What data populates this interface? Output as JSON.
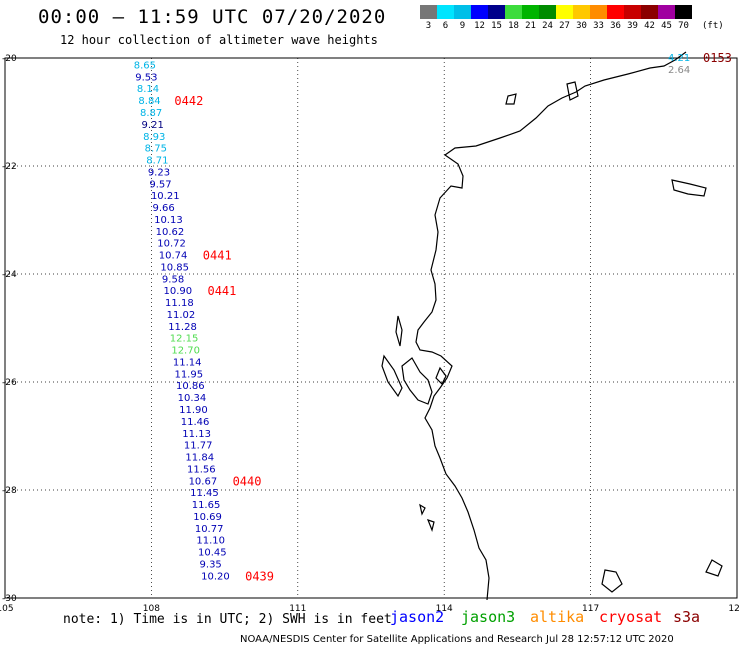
{
  "header": {
    "title": "00:00 – 11:59 UTC 07/20/2020",
    "subtitle": "12 hour collection of altimeter wave heights"
  },
  "legend_scale": {
    "unit": "(ft)",
    "labels": [
      "3",
      "6",
      "9",
      "12",
      "15",
      "18",
      "21",
      "24",
      "27",
      "30",
      "33",
      "36",
      "39",
      "42",
      "45",
      "70"
    ],
    "colors": [
      "#777777",
      "#00e5ff",
      "#00bfe8",
      "#0000ff",
      "#00008b",
      "#3cdc3c",
      "#00b400",
      "#008c00",
      "#ffff00",
      "#ffc800",
      "#ff8c00",
      "#ff0000",
      "#c80000",
      "#8b0000",
      "#a000a0",
      "#000000"
    ]
  },
  "map": {
    "lon_labels": [
      "105",
      "108",
      "111",
      "114",
      "117",
      "120"
    ],
    "lat_labels": [
      "-20",
      "-22",
      "-24",
      "-26",
      "-28",
      "-30"
    ],
    "coast_color": "#000000"
  },
  "track_points": [
    {
      "v": "8.65",
      "c": "#00b4e6",
      "lat": -20.12
    },
    {
      "v": "9.53",
      "c": "#0000b4",
      "lat": -20.34
    },
    {
      "v": "8.14",
      "c": "#00b4e6",
      "lat": -20.56
    },
    {
      "v": "8.84",
      "c": "#00b4e6",
      "lat": -20.78
    },
    {
      "v": "8.87",
      "c": "#00b4e6",
      "lat": -21.0
    },
    {
      "v": "9.21",
      "c": "#000080",
      "lat": -21.22
    },
    {
      "v": "8.93",
      "c": "#00b4e6",
      "lat": -21.44
    },
    {
      "v": "8.75",
      "c": "#00b4e6",
      "lat": -21.66
    },
    {
      "v": "8.71",
      "c": "#00b4e6",
      "lat": -21.88
    },
    {
      "v": "9.23",
      "c": "#0000b4",
      "lat": -22.1
    },
    {
      "v": "9.57",
      "c": "#0000b4",
      "lat": -22.32
    },
    {
      "v": "10.21",
      "c": "#0000b4",
      "lat": -22.54
    },
    {
      "v": "9.66",
      "c": "#0000b4",
      "lat": -22.76
    },
    {
      "v": "10.13",
      "c": "#0000b4",
      "lat": -22.98
    },
    {
      "v": "10.62",
      "c": "#0000b4",
      "lat": -23.2
    },
    {
      "v": "10.72",
      "c": "#0000b4",
      "lat": -23.42
    },
    {
      "v": "10.74",
      "c": "#0000b4",
      "lat": -23.64
    },
    {
      "v": "10.85",
      "c": "#0000b4",
      "lat": -23.86
    },
    {
      "v": "9.58",
      "c": "#0000b4",
      "lat": -24.08
    },
    {
      "v": "10.90",
      "c": "#0000b4",
      "lat": -24.3
    },
    {
      "v": "11.18",
      "c": "#0000b4",
      "lat": -24.52
    },
    {
      "v": "11.02",
      "c": "#0000b4",
      "lat": -24.74
    },
    {
      "v": "11.28",
      "c": "#0000b4",
      "lat": -24.96
    },
    {
      "v": "12.15",
      "c": "#50dc50",
      "lat": -25.18
    },
    {
      "v": "12.70",
      "c": "#50dc50",
      "lat": -25.4
    },
    {
      "v": "11.14",
      "c": "#0000b4",
      "lat": -25.62
    },
    {
      "v": "11.95",
      "c": "#0000b4",
      "lat": -25.84
    },
    {
      "v": "10.86",
      "c": "#0000b4",
      "lat": -26.06
    },
    {
      "v": "10.34",
      "c": "#0000b4",
      "lat": -26.28
    },
    {
      "v": "11.90",
      "c": "#0000b4",
      "lat": -26.5
    },
    {
      "v": "11.46",
      "c": "#0000b4",
      "lat": -26.72
    },
    {
      "v": "11.13",
      "c": "#0000b4",
      "lat": -26.94
    },
    {
      "v": "11.77",
      "c": "#0000b4",
      "lat": -27.16
    },
    {
      "v": "11.84",
      "c": "#0000b4",
      "lat": -27.38
    },
    {
      "v": "11.56",
      "c": "#0000b4",
      "lat": -27.6
    },
    {
      "v": "10.67",
      "c": "#0000b4",
      "lat": -27.82
    },
    {
      "v": "11.45",
      "c": "#0000b4",
      "lat": -28.04
    },
    {
      "v": "11.65",
      "c": "#0000b4",
      "lat": -28.26
    },
    {
      "v": "10.69",
      "c": "#0000b4",
      "lat": -28.48
    },
    {
      "v": "10.77",
      "c": "#0000b4",
      "lat": -28.7
    },
    {
      "v": "11.10",
      "c": "#0000b4",
      "lat": -28.92
    },
    {
      "v": "10.45",
      "c": "#0000b4",
      "lat": -29.14
    },
    {
      "v": "9.35",
      "c": "#0000b4",
      "lat": -29.36
    },
    {
      "v": "10.20",
      "c": "#0000b4",
      "lat": -29.58
    }
  ],
  "time_labels": [
    {
      "t": "0442",
      "c": "#ff0000",
      "lat": -20.78
    },
    {
      "t": "0441",
      "c": "#ff0000",
      "lat": -23.64
    },
    {
      "t": "0441",
      "c": "#ff0000",
      "lat": -24.3
    },
    {
      "t": "0440",
      "c": "#ff0000",
      "lat": -27.82
    },
    {
      "t": "0439",
      "c": "#ff0000",
      "lat": -29.58
    },
    {
      "t": "0153",
      "c": "#8b0000",
      "lat": -20.0
    }
  ],
  "corner_points": [
    {
      "v": "4.21",
      "c": "#00b4e6"
    },
    {
      "v": "2.64",
      "c": "#888888"
    }
  ],
  "footer": {
    "note": "note: 1) Time is in UTC; 2) SWH is in feet",
    "credit": "NOAA/NESDIS Center for Satellite Applications and Research   Jul 28 12:57:12 UTC 2020",
    "satellites": [
      {
        "name": "jason2",
        "color": "#0000ff"
      },
      {
        "name": "jason3",
        "color": "#00a000"
      },
      {
        "name": "altika",
        "color": "#ff8c00"
      },
      {
        "name": "cryosat",
        "color": "#ff0000"
      },
      {
        "name": "s3a",
        "color": "#8b0000"
      }
    ]
  }
}
